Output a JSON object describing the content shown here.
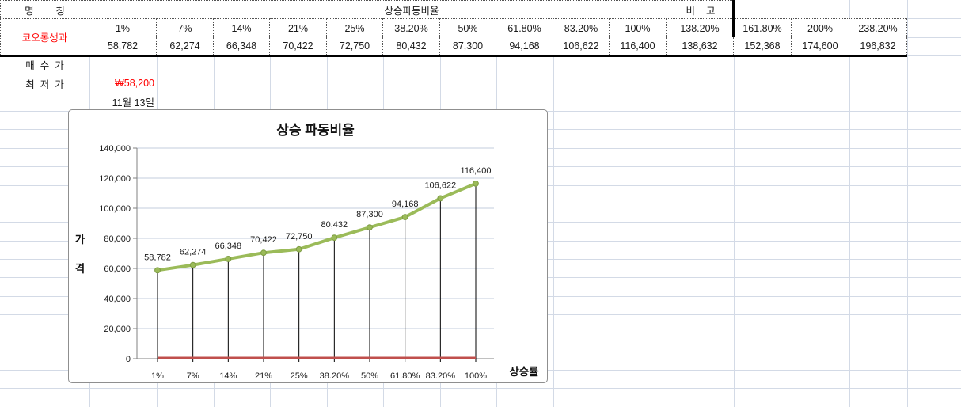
{
  "table": {
    "name_label": "명        칭",
    "header_title": "상승파동비율",
    "note_label": "비    고",
    "stock_name": "코오롱생과",
    "percent_row": [
      "1%",
      "7%",
      "14%",
      "21%",
      "25%",
      "38.20%",
      "50%",
      "61.80%",
      "83.20%",
      "100%",
      "138.20%",
      "161.80%",
      "200%",
      "238.20%"
    ],
    "value_row": [
      "58,782",
      "62,274",
      "66,348",
      "70,422",
      "72,750",
      "80,432",
      "87,300",
      "94,168",
      "106,622",
      "116,400",
      "138,632",
      "152,368",
      "174,600",
      "196,832"
    ],
    "buy_price_label": "매  수  가",
    "low_price_label": "최  저  가",
    "low_price_value": "₩58,200",
    "date_value": "11월 13일"
  },
  "colors": {
    "accent_red_text": "#ff0000",
    "series_green": "#9BBB59",
    "series_green_edge": "#7E9D44",
    "baseline_red": "#C0504D",
    "axis_gray": "#808080",
    "chart_gridline": "#c3cedd",
    "drop_line": "#000000"
  },
  "chart_data": {
    "type": "line",
    "title": "상승 파동비율",
    "xlabel": "상승률",
    "ylabel": "가격",
    "categories": [
      "1%",
      "7%",
      "14%",
      "21%",
      "25%",
      "38.20%",
      "50%",
      "61.80%",
      "83.20%",
      "100%"
    ],
    "values": [
      58782,
      62274,
      66348,
      70422,
      72750,
      80432,
      87300,
      94168,
      106622,
      116400
    ],
    "data_labels": [
      "58,782",
      "62,274",
      "66,348",
      "70,422",
      "72,750",
      "80,432",
      "87,300",
      "94,168",
      "106,622",
      "116,400"
    ],
    "baseline_values": [
      0,
      0,
      0,
      0,
      0,
      0,
      0,
      0,
      0,
      0
    ],
    "ylim": [
      0,
      140000
    ],
    "ytick_step": 20000,
    "grid": true,
    "drop_lines": true,
    "legend": "none"
  }
}
